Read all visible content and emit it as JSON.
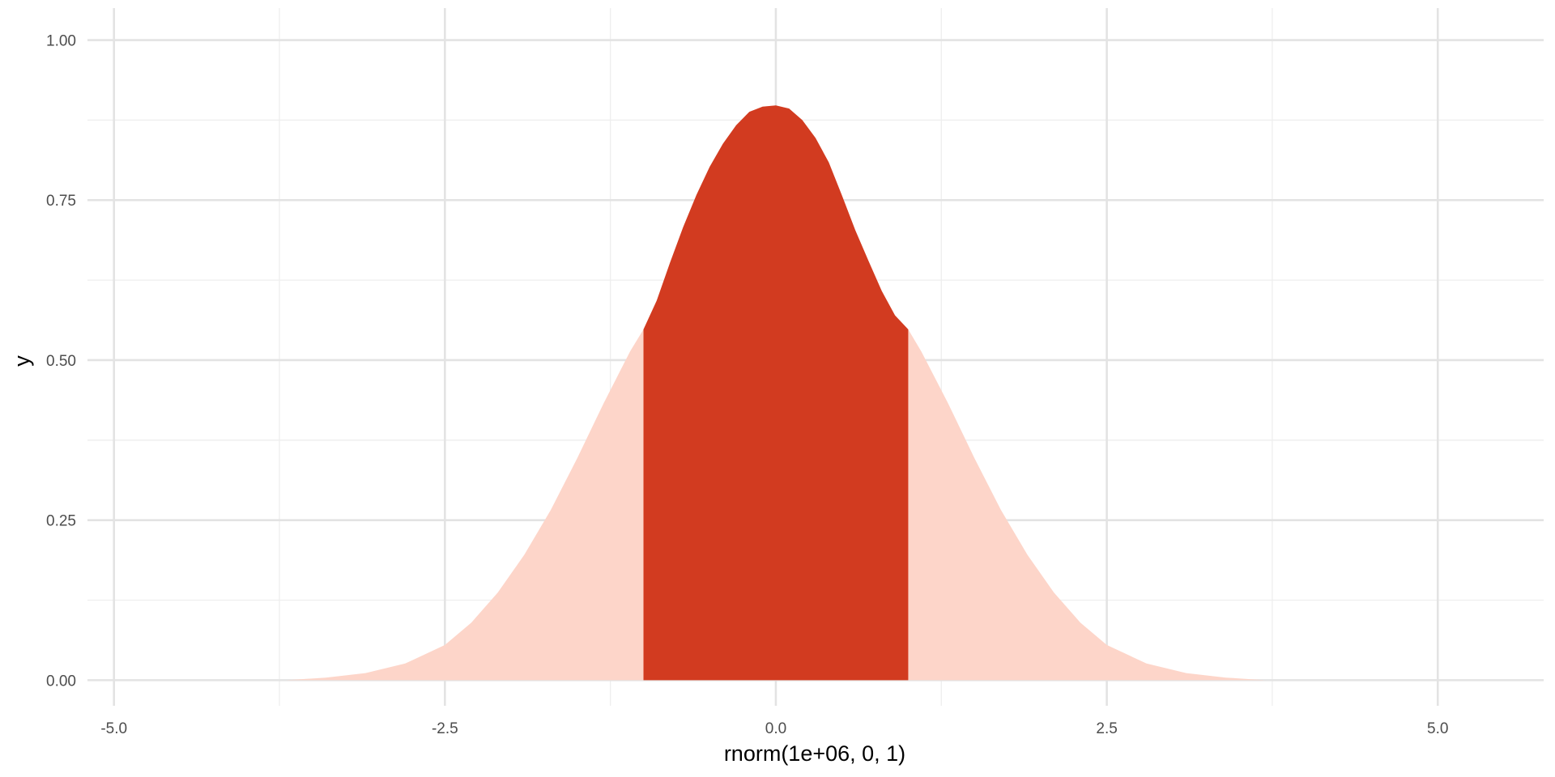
{
  "chart_data": {
    "type": "area",
    "title": "",
    "xlabel": "rnorm(1e+06, 0, 1)",
    "ylabel": "y",
    "xlim": [
      -5.2,
      5.8
    ],
    "ylim": [
      -0.04,
      1.05
    ],
    "x_major_ticks": [
      -5.0,
      -2.5,
      0.0,
      2.5,
      5.0
    ],
    "x_tick_labels": [
      "-5.0",
      "-2.5",
      "0.0",
      "2.5",
      "5.0"
    ],
    "x_minor_ticks": [
      -3.75,
      -1.25,
      1.25,
      3.75
    ],
    "y_major_ticks": [
      0.0,
      0.25,
      0.5,
      0.75,
      1.0
    ],
    "y_tick_labels": [
      "0.00",
      "0.25",
      "0.50",
      "0.75",
      "1.00"
    ],
    "y_minor_ticks": [
      0.125,
      0.375,
      0.625,
      0.875
    ],
    "grid": true,
    "legend": "none",
    "density_curve": {
      "x": [
        -3.7,
        -3.4,
        -3.1,
        -2.8,
        -2.5,
        -2.3,
        -2.1,
        -1.9,
        -1.7,
        -1.5,
        -1.3,
        -1.1,
        -1.0,
        -0.9,
        -0.8,
        -0.7,
        -0.6,
        -0.5,
        -0.4,
        -0.3,
        -0.2,
        -0.1,
        0.0,
        0.1,
        0.2,
        0.3,
        0.4,
        0.5,
        0.6,
        0.7,
        0.8,
        0.9,
        1.0,
        1.1,
        1.3,
        1.5,
        1.7,
        1.9,
        2.1,
        2.3,
        2.5,
        2.8,
        3.1,
        3.4,
        3.7
      ],
      "y": [
        0.0,
        0.004,
        0.011,
        0.026,
        0.055,
        0.09,
        0.137,
        0.196,
        0.266,
        0.347,
        0.433,
        0.514,
        0.548,
        0.593,
        0.652,
        0.708,
        0.758,
        0.802,
        0.838,
        0.867,
        0.888,
        0.896,
        0.898,
        0.893,
        0.875,
        0.847,
        0.809,
        0.757,
        0.703,
        0.655,
        0.608,
        0.57,
        0.548,
        0.513,
        0.433,
        0.347,
        0.266,
        0.196,
        0.137,
        0.09,
        0.055,
        0.026,
        0.011,
        0.004,
        0.0
      ]
    },
    "tail_fill_color": "#FDD5C9",
    "highlight_range": [
      -1.0,
      1.0
    ],
    "highlight_fill_color": "#D23B20",
    "background_color": "#FFFFFF"
  }
}
